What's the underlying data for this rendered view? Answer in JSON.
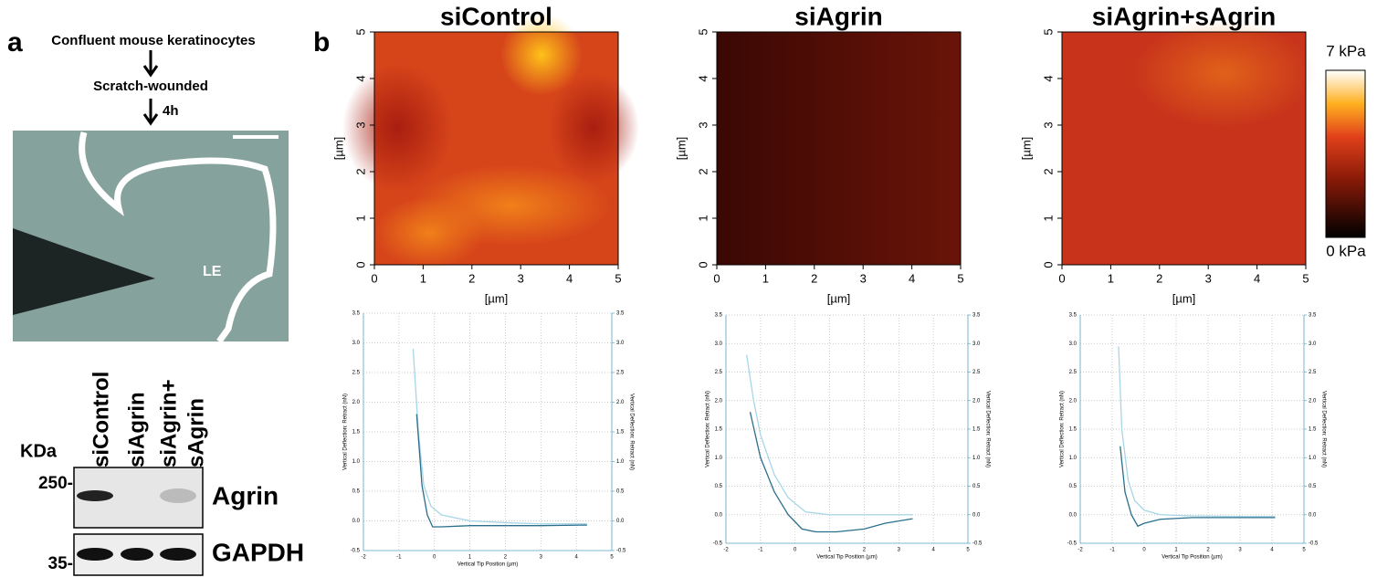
{
  "panel_a": {
    "label": "a",
    "steps": [
      "Confluent mouse keratinocytes",
      "Scratch-wounded",
      "4h"
    ],
    "image_label": "LE",
    "blot": {
      "kda_label": "KDa",
      "lanes": [
        "siControl",
        "siAgrin",
        "siAgrin+",
        "sAgrin"
      ],
      "markers": [
        {
          "value": 250,
          "label": "250-"
        },
        {
          "value": 35,
          "label": "35-"
        }
      ],
      "bands": [
        "Agrin",
        "GAPDH"
      ]
    }
  },
  "panel_b": {
    "label": "b",
    "colorbar": {
      "ticks": [
        {
          "value": 7,
          "label": "7 kPa"
        },
        {
          "value": 0,
          "label": "0 kPa"
        }
      ],
      "lim": [
        0,
        7
      ]
    },
    "maps": [
      {
        "title": "siControl",
        "xlim": [
          0,
          5
        ],
        "ylim": [
          0,
          5
        ],
        "xticks": [
          0,
          1,
          2,
          3,
          4,
          5
        ],
        "yticks": [
          0,
          1,
          2,
          3,
          4,
          5
        ],
        "xlabel": "[µm]",
        "ylabel": "[µm]"
      },
      {
        "title": "siAgrin",
        "xlim": [
          0,
          5
        ],
        "ylim": [
          0,
          5
        ],
        "xticks": [
          0,
          1,
          2,
          3,
          4,
          5
        ],
        "yticks": [
          0,
          1,
          2,
          3,
          4,
          5
        ],
        "xlabel": "[µm]",
        "ylabel": "[µm]"
      },
      {
        "title": "siAgrin+sAgrin",
        "xlim": [
          0,
          5
        ],
        "ylim": [
          0,
          5
        ],
        "xticks": [
          0,
          1,
          2,
          3,
          4,
          5
        ],
        "yticks": [
          0,
          1,
          2,
          3,
          4,
          5
        ],
        "xlabel": "[µm]",
        "ylabel": "[µm]"
      }
    ],
    "curves": [
      {
        "type": "line",
        "xlabel": "Vertical Tip Position (µm)",
        "ylabel": "Vertical Deflection: Retract (nN)",
        "y2label": "Vertical Deflection: Retract (nN)",
        "xlim": [
          -2,
          5
        ],
        "ylim": [
          -0.5,
          3.5
        ],
        "y2lim": [
          -0.5,
          3.5
        ],
        "grid": true,
        "xticks": [
          -2,
          -1,
          0,
          1,
          2,
          3,
          4,
          5
        ],
        "yticks": [
          -0.5,
          {
            "value": 0,
            "label": "0.0"
          },
          0.5,
          {
            "value": 1,
            "label": "1.0"
          },
          1.5,
          {
            "value": 2,
            "label": "2.0"
          },
          2.5,
          {
            "value": 3,
            "label": "3.0"
          },
          3.5
        ],
        "y2ticks": [
          -0.5,
          {
            "value": 0,
            "label": "0.0"
          },
          0.5,
          {
            "value": 1,
            "label": "1.0"
          },
          1.5,
          {
            "value": 2,
            "label": "2.0"
          },
          2.5,
          {
            "value": 3,
            "label": "3.0"
          },
          3.5
        ],
        "series": [
          {
            "color": "#a8d6e6",
            "x": [
              -0.6,
              -0.45,
              -0.3,
              -0.1,
              0.2,
              1,
              2,
              3,
              4.3
            ],
            "values": [
              2.9,
              1.5,
              0.6,
              0.25,
              0.1,
              0,
              -0.03,
              -0.05,
              -0.05
            ]
          },
          {
            "color": "#2b6f8c",
            "x": [
              -0.5,
              -0.35,
              -0.2,
              -0.05,
              0.2,
              1,
              2,
              3,
              4.3
            ],
            "values": [
              1.8,
              0.6,
              0.1,
              -0.1,
              -0.1,
              -0.08,
              -0.08,
              -0.08,
              -0.07
            ]
          }
        ]
      },
      {
        "type": "line",
        "xlabel": "Vertical Tip Position (µm)",
        "ylabel": "Vertical Deflection: Retract (nN)",
        "y2label": "Vertical Deflection: Retract (nN)",
        "xlim": [
          -2,
          5
        ],
        "ylim": [
          -0.5,
          3.5
        ],
        "y2lim": [
          -0.5,
          3.5
        ],
        "grid": true,
        "xticks": [
          -2,
          -1,
          0,
          1,
          2,
          3,
          4,
          5
        ],
        "yticks": [
          -0.5,
          {
            "value": 0,
            "label": "0.0"
          },
          0.5,
          {
            "value": 1,
            "label": "1.0"
          },
          1.5,
          {
            "value": 2,
            "label": "2.0"
          },
          2.5,
          {
            "value": 3,
            "label": "3.0"
          },
          3.5
        ],
        "y2ticks": [
          -0.5,
          {
            "value": 0,
            "label": "0.0"
          },
          0.5,
          {
            "value": 1,
            "label": "1.0"
          },
          1.5,
          {
            "value": 2,
            "label": "2.0"
          },
          2.5,
          {
            "value": 3,
            "label": "3.0"
          },
          3.5
        ],
        "series": [
          {
            "color": "#a8d6e6",
            "x": [
              -1.4,
              -1.2,
              -1,
              -0.6,
              -0.2,
              0.3,
              1,
              2,
              3.4
            ],
            "values": [
              2.8,
              2.0,
              1.4,
              0.7,
              0.3,
              0.05,
              0,
              0,
              0
            ]
          },
          {
            "color": "#2b6f8c",
            "x": [
              -1.3,
              -1,
              -0.6,
              -0.2,
              0.2,
              0.6,
              1.2,
              2,
              2.6,
              3.4
            ],
            "values": [
              1.8,
              1.0,
              0.4,
              0,
              -0.25,
              -0.3,
              -0.3,
              -0.25,
              -0.15,
              -0.07
            ]
          }
        ]
      },
      {
        "type": "line",
        "xlabel": "Vertical Tip Position (µm)",
        "ylabel": "Vertical Deflection: Retract (nN)",
        "y2label": "Vertical Deflection: Retract (nN)",
        "xlim": [
          -2,
          5
        ],
        "ylim": [
          -0.5,
          3.5
        ],
        "y2lim": [
          -0.5,
          3.5
        ],
        "grid": true,
        "xticks": [
          -2,
          -1,
          0,
          1,
          2,
          3,
          4,
          5
        ],
        "yticks": [
          -0.5,
          {
            "value": 0,
            "label": "0.0"
          },
          0.5,
          {
            "value": 1,
            "label": "1.0"
          },
          1.5,
          {
            "value": 2,
            "label": "2.0"
          },
          2.5,
          {
            "value": 3,
            "label": "3.0"
          },
          3.5
        ],
        "y2ticks": [
          -0.5,
          {
            "value": 0,
            "label": "0.0"
          },
          0.5,
          {
            "value": 1,
            "label": "1.0"
          },
          1.5,
          {
            "value": 2,
            "label": "2.0"
          },
          2.5,
          {
            "value": 3,
            "label": "3.0"
          },
          3.5
        ],
        "series": [
          {
            "color": "#a8d6e6",
            "x": [
              -0.8,
              -0.7,
              -0.5,
              -0.3,
              0,
              0.5,
              1.5,
              3,
              4.1
            ],
            "values": [
              2.95,
              1.5,
              0.6,
              0.25,
              0.08,
              0,
              -0.02,
              -0.03,
              -0.03
            ]
          },
          {
            "color": "#2b6f8c",
            "x": [
              -0.75,
              -0.6,
              -0.4,
              -0.2,
              0,
              0.5,
              1.5,
              3,
              4.1
            ],
            "values": [
              1.2,
              0.4,
              0,
              -0.2,
              -0.15,
              -0.08,
              -0.05,
              -0.05,
              -0.05
            ]
          }
        ]
      }
    ]
  }
}
